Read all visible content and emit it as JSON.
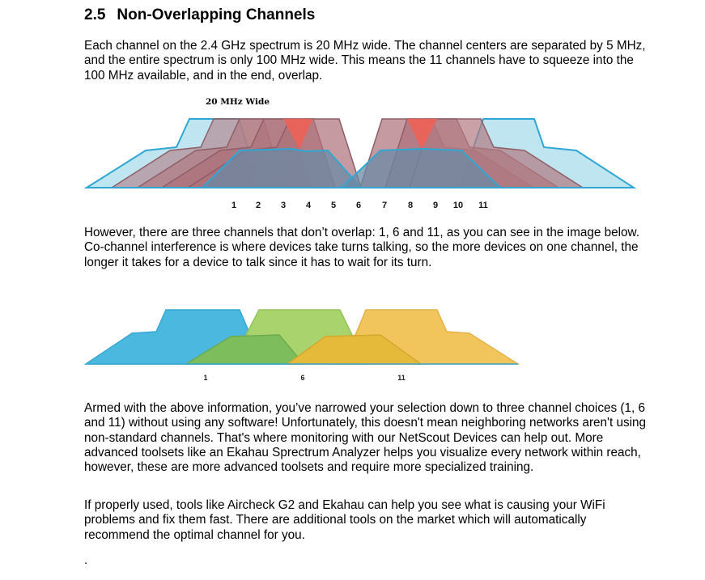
{
  "section": {
    "number": "2.5",
    "title": "Non-Overlapping Channels"
  },
  "paragraphs": {
    "p1": "Each channel on the 2.4 GHz spectrum is 20 MHz wide. The channel centers are separated by 5 MHz, and the entire spectrum is only 100 MHz wide. This means the 11 channels have to squeeze into the 100 MHz available, and in the end, overlap.",
    "p2": "However, there are three channels that don’t overlap: 1, 6 and 11, as you can see in the image below. Co-channel interference is where devices take turns talking, so the more devices on one channel, the longer it takes for a device to talk since it has to wait for its turn.",
    "p3": "Armed with the above information, you’ve narrowed your selection down to three channel choices (1, 6 and 11) without using any software! Unfortunately, this doesn't mean neighboring networks aren't using non-standard channels. That's where monitoring with our NetScout Devices can help out. More advanced toolsets like an Ekahau Sprectrum Analyzer helps you visualize every network within reach, however, these are more advanced toolsets and require more specialized training.",
    "p4": "If properly used, tools like Aircheck G2 and Ekahau can help you see what is causing your WiFi problems and fix them fast. There are additional tools on the market which will automatically recommend the optimal channel for you.",
    "trailing": "."
  },
  "figure1": {
    "label": "20 MHz Wide",
    "channels": [
      "1",
      "2",
      "3",
      "4",
      "5",
      "6",
      "7",
      "8",
      "9",
      "10",
      "11"
    ],
    "colors": {
      "blue": "#3fb0d9",
      "red": "#e8645a"
    }
  },
  "figure2": {
    "channels": [
      "1",
      "6",
      "11"
    ],
    "colors": {
      "blue": "#4bb8e0",
      "green": "#a8d36a",
      "yellow": "#f2c45c"
    }
  }
}
